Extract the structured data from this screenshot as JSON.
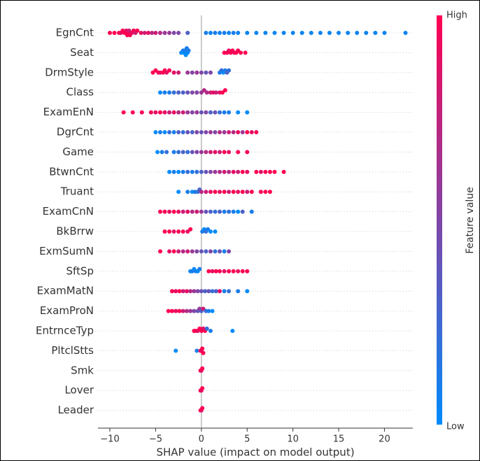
{
  "chart_data": {
    "type": "beeswarm",
    "xlabel": "SHAP value (impact on model output)",
    "xlim": [
      -11.3,
      23.1
    ],
    "xticks": [
      {
        "value": -10,
        "label": "−10"
      },
      {
        "value": -5,
        "label": "−5"
      },
      0,
      5,
      10,
      15,
      20
    ],
    "low_color": "#008bfb",
    "high_color": "#ff0052",
    "colorbar": {
      "label": "Feature value",
      "high": "High",
      "low": "Low"
    },
    "features": [
      {
        "name": "EgnCnt",
        "shap": [
          -10,
          -9.5,
          -9,
          -8.8,
          -8.6,
          -8.4,
          -8.2,
          -8.1,
          -8,
          -7.9,
          -7.8,
          -7.6,
          -7.4,
          -7.2,
          -7,
          -6.6,
          -6.2,
          -5.8,
          -5.4,
          -5,
          -4.5,
          -4,
          -3.5,
          -3,
          -2.5,
          -1.5,
          0.5,
          1,
          1.5,
          2,
          2.5,
          3,
          3.5,
          4,
          5,
          6,
          7,
          8,
          9,
          10,
          11,
          12,
          13,
          14,
          15,
          16,
          17,
          18,
          19,
          20,
          22.3
        ],
        "feature_value": [
          1,
          1,
          1,
          0.9,
          1,
          1,
          0.9,
          1,
          1,
          0.8,
          1,
          0.9,
          1,
          0.8,
          1,
          0.9,
          0.8,
          0.9,
          0.7,
          0.8,
          0.7,
          0.6,
          0.6,
          0.5,
          0.5,
          0.3,
          0.1,
          0.05,
          0.1,
          0.05,
          0.1,
          0.05,
          0.1,
          0.05,
          0.05,
          0.05,
          0.05,
          0.05,
          0.05,
          0.05,
          0.05,
          0.05,
          0.05,
          0.05,
          0.05,
          0.05,
          0.05,
          0.05,
          0.05,
          0.05,
          0.05
        ]
      },
      {
        "name": "Seat",
        "shap": [
          -2.2,
          -2,
          -1.9,
          -1.8,
          -1.7,
          -1.6,
          -1.5,
          -1.4,
          2.5,
          2.8,
          3,
          3.2,
          3.4,
          3.6,
          3.8,
          4,
          4.3,
          4.8
        ],
        "feature_value": [
          0,
          0.1,
          0,
          0.1,
          0,
          0.1,
          0,
          0.1,
          1,
          1,
          0.9,
          1,
          1,
          0.9,
          1,
          1,
          1,
          1
        ]
      },
      {
        "name": "DrmStyle",
        "shap": [
          -5.3,
          -5,
          -4.7,
          -4.5,
          -4.2,
          -4,
          -3.8,
          -3.5,
          -3,
          -2.5,
          -1.5,
          -1,
          -0.5,
          0,
          0.5,
          1,
          2,
          2.2,
          2.4,
          2.6,
          2.8,
          3
        ],
        "feature_value": [
          1,
          1,
          1,
          0.9,
          1,
          1,
          0.9,
          1,
          0.9,
          0.8,
          0.6,
          0.5,
          0.6,
          0.5,
          0.4,
          0.5,
          0.1,
          0.2,
          0,
          0.1,
          0.3,
          0.2
        ]
      },
      {
        "name": "Class",
        "shap": [
          -4.5,
          -4,
          -3.5,
          -3,
          -2.5,
          -2,
          -1.5,
          -1,
          -0.5,
          0,
          0.3,
          0.6,
          1,
          1.3,
          1.6,
          2,
          2.3,
          2.6
        ],
        "feature_value": [
          0,
          0.1,
          0.1,
          0.2,
          0.3,
          0.3,
          0.4,
          0.5,
          0.5,
          0.6,
          0.7,
          0.7,
          0.8,
          0.9,
          0.8,
          0.9,
          1,
          1
        ]
      },
      {
        "name": "ExamEnN",
        "shap": [
          -8.5,
          -7.5,
          -6.5,
          -5.5,
          -5,
          -4.5,
          -4,
          -3.5,
          -3,
          -2.5,
          -2,
          -1.5,
          -1,
          -0.5,
          0,
          0.5,
          1,
          1.5,
          2,
          2.5,
          3,
          4,
          5
        ],
        "feature_value": [
          1,
          1,
          1,
          1,
          0.9,
          1,
          0.9,
          0.8,
          0.9,
          0.7,
          0.8,
          0.6,
          0.5,
          0.6,
          0.4,
          0.5,
          0.3,
          0.4,
          0.2,
          0.1,
          0.1,
          0,
          0
        ]
      },
      {
        "name": "DgrCnt",
        "shap": [
          -5,
          -4.5,
          -4,
          -3.5,
          -3,
          -2.5,
          -2,
          -1.5,
          -1,
          -0.5,
          0,
          0.5,
          1,
          1.5,
          2,
          2.5,
          3,
          3.5,
          4,
          4.5,
          5,
          5.5,
          6
        ],
        "feature_value": [
          0,
          0.1,
          0,
          0.2,
          0.1,
          0.3,
          0.2,
          0.4,
          0.3,
          0.5,
          0.4,
          0.5,
          0.6,
          0.5,
          0.7,
          0.6,
          0.8,
          0.7,
          0.9,
          0.6,
          1,
          0.9,
          1
        ]
      },
      {
        "name": "Game",
        "shap": [
          -4.8,
          -4.3,
          -3.8,
          -3,
          -2.5,
          -2,
          -1.5,
          -1,
          -0.5,
          0,
          0.5,
          1,
          1.5,
          2,
          2.5,
          3,
          4,
          5
        ],
        "feature_value": [
          0,
          0.1,
          0.2,
          0.1,
          0.2,
          0.3,
          0.2,
          0.4,
          0.5,
          0.6,
          0.7,
          0.8,
          0.9,
          0.8,
          1,
          0.9,
          1,
          1
        ]
      },
      {
        "name": "BtwnCnt",
        "shap": [
          -3.5,
          -3,
          -2.5,
          -2,
          -1.5,
          -1,
          -0.5,
          0,
          0.5,
          1,
          1.5,
          2,
          2.5,
          3,
          3.5,
          4,
          4.5,
          5,
          6,
          6.5,
          7,
          7.5,
          8,
          9
        ],
        "feature_value": [
          0,
          0.1,
          0,
          0.1,
          0.2,
          0.1,
          0.2,
          0.3,
          0.4,
          0.5,
          0.6,
          0.7,
          0.8,
          0.7,
          0.9,
          0.8,
          1,
          0.9,
          1,
          0.9,
          1,
          1,
          1,
          1
        ]
      },
      {
        "name": "Truant",
        "shap": [
          -2.5,
          -1.5,
          -1,
          -0.7,
          -0.4,
          -0.2,
          0,
          0.5,
          1,
          1.5,
          2,
          2.5,
          3,
          3.5,
          4,
          4.5,
          5,
          5.5,
          6.5,
          7,
          7.5
        ],
        "feature_value": [
          0,
          0.1,
          0,
          0.1,
          0.2,
          0.3,
          0.7,
          0.8,
          0.9,
          1,
          0.9,
          1,
          0.8,
          1,
          0.9,
          1,
          0.8,
          1,
          1,
          1,
          1
        ]
      },
      {
        "name": "ExamCnN",
        "shap": [
          -4.5,
          -4,
          -3.5,
          -3,
          -2.5,
          -2,
          -1.5,
          -1,
          -0.5,
          0,
          0.5,
          1,
          1.5,
          2,
          2.5,
          3,
          3.5,
          4,
          4.5,
          5.5
        ],
        "feature_value": [
          1,
          1,
          0.9,
          1,
          0.9,
          0.8,
          0.9,
          0.7,
          0.8,
          0.6,
          0.4,
          0.3,
          0.2,
          0.3,
          0.1,
          0.2,
          0.1,
          0,
          0.3,
          0.1
        ]
      },
      {
        "name": "BkBrrw",
        "shap": [
          -4,
          -3.5,
          -3,
          -2.5,
          -2,
          -1.5,
          -1.2,
          0.1,
          0.3,
          0.5,
          0.7,
          1,
          1.5
        ],
        "feature_value": [
          1,
          1,
          0.9,
          1,
          1,
          0.9,
          1,
          0.1,
          0,
          0.2,
          0.1,
          0,
          0
        ]
      },
      {
        "name": "ExmSumN",
        "shap": [
          -4.5,
          -3.5,
          -3,
          -2.5,
          -2,
          -1.5,
          -1,
          -0.5,
          0,
          0.5,
          1,
          1.5,
          2,
          2.5,
          3
        ],
        "feature_value": [
          1,
          0.9,
          1,
          0.8,
          0.7,
          0.8,
          0.6,
          0.5,
          0.4,
          0.3,
          0.5,
          0.2,
          0.4,
          0.1,
          0.5
        ]
      },
      {
        "name": "SftSp",
        "shap": [
          -1.2,
          -1,
          -0.8,
          -0.6,
          -0.4,
          -0.2,
          0.8,
          1.2,
          1.6,
          2,
          2.5,
          3,
          3.5,
          4,
          4.5,
          5
        ],
        "feature_value": [
          0,
          0.1,
          0,
          0.1,
          0,
          0.1,
          1,
          0.9,
          1,
          1,
          0.9,
          1,
          1,
          0.9,
          1,
          1
        ]
      },
      {
        "name": "ExamMatN",
        "shap": [
          -3.2,
          -2.8,
          -2.4,
          -2,
          -1.6,
          -1.2,
          -0.8,
          -0.4,
          0,
          0.4,
          0.8,
          1.2,
          1.6,
          2,
          2.5,
          3,
          4,
          5
        ],
        "feature_value": [
          1,
          0.9,
          1,
          0.8,
          0.9,
          0.7,
          0.6,
          0.5,
          0.4,
          0.3,
          0.4,
          0.2,
          0.3,
          0.9,
          0.1,
          0.2,
          0.1,
          0
        ]
      },
      {
        "name": "ExamProN",
        "shap": [
          -3.6,
          -3.2,
          -2.8,
          -2.4,
          -2,
          -1.6,
          -1.2,
          -0.8,
          -0.4,
          -0.2,
          0,
          0.2,
          0.5,
          0.8,
          1.2
        ],
        "feature_value": [
          1,
          1,
          0.9,
          1,
          0.8,
          0.7,
          0.6,
          0.5,
          0.4,
          0.6,
          0.3,
          0.8,
          0.2,
          0.1,
          0
        ]
      },
      {
        "name": "EntrnceTyp",
        "shap": [
          -0.8,
          -0.6,
          -0.4,
          -0.2,
          0,
          0.2,
          0.4,
          0.6,
          1,
          3.4
        ],
        "feature_value": [
          1,
          1,
          0.9,
          1,
          1,
          0.9,
          1,
          0.2,
          0.1,
          0
        ]
      },
      {
        "name": "PltclStts",
        "shap": [
          -2.8,
          -0.5,
          -0.1,
          0,
          0.1,
          0.2
        ],
        "feature_value": [
          0,
          0.1,
          1,
          0.9,
          1,
          1
        ]
      },
      {
        "name": "Smk",
        "shap": [
          -0.1,
          0,
          0.1
        ],
        "feature_value": [
          1,
          0.9,
          1
        ]
      },
      {
        "name": "Lover",
        "shap": [
          -0.1,
          0,
          0.1
        ],
        "feature_value": [
          1,
          0.9,
          1
        ]
      },
      {
        "name": "Leader",
        "shap": [
          -0.1,
          0,
          0.1
        ],
        "feature_value": [
          1,
          0.9,
          1
        ]
      }
    ]
  }
}
